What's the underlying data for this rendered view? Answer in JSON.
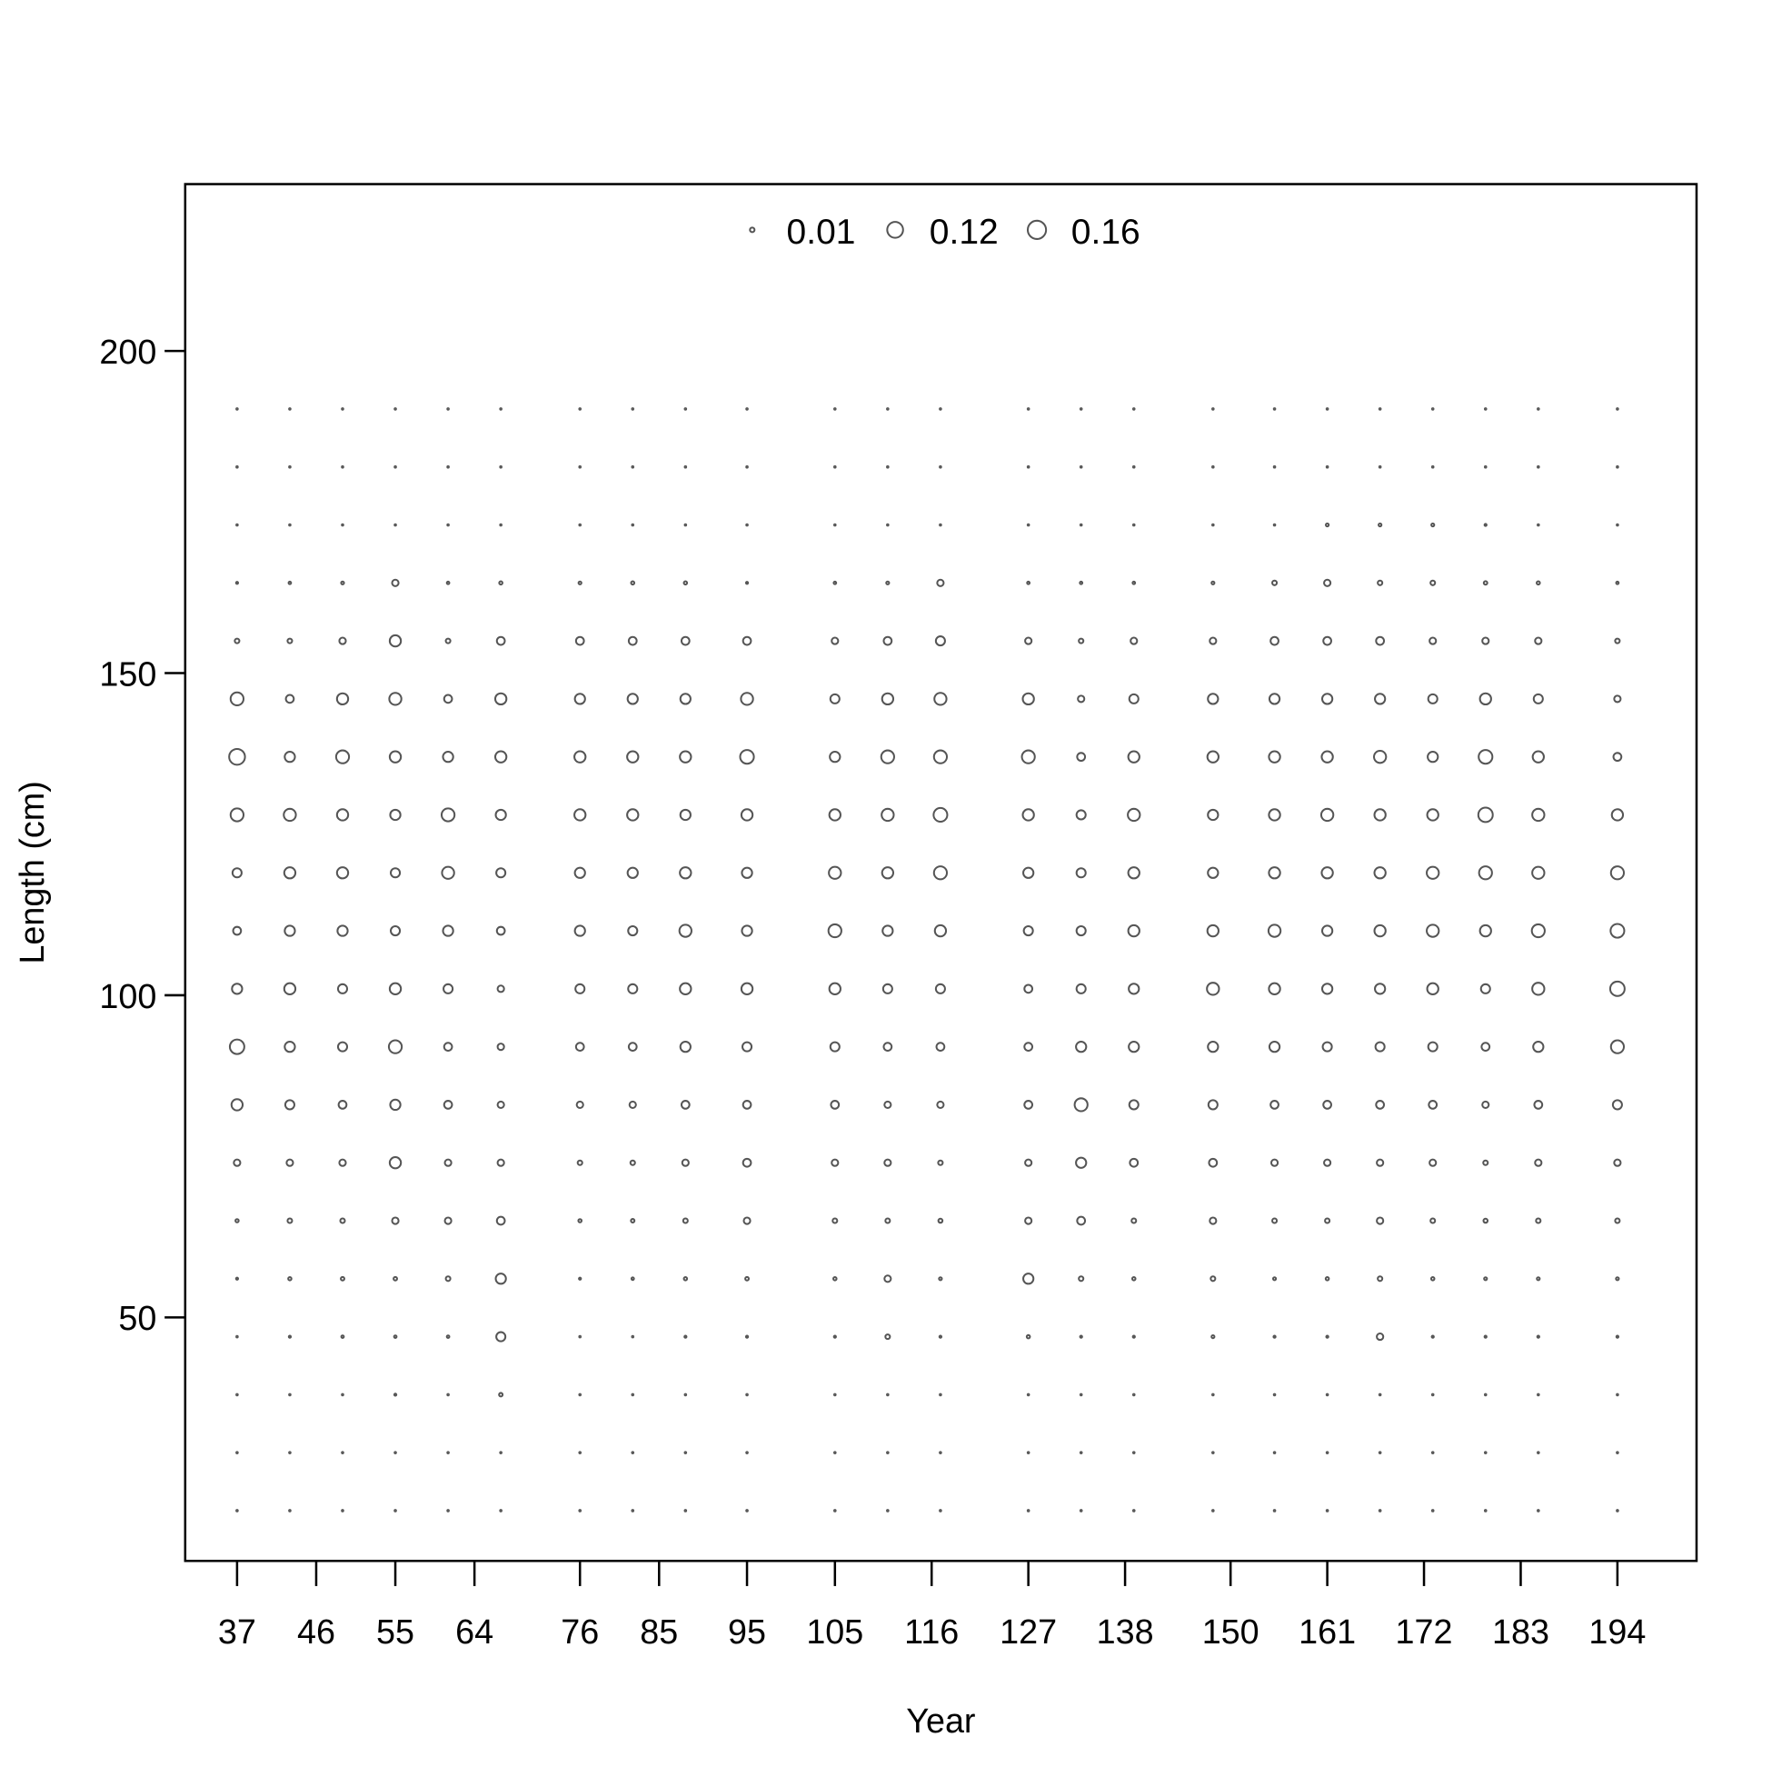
{
  "chart_data": {
    "type": "bubble",
    "xlabel": "Year",
    "ylabel": "Length (cm)",
    "xlim": [
      31.1,
      203.0
    ],
    "ylim": [
      12.2,
      225.9
    ],
    "xticks": [
      37,
      46,
      55,
      64,
      76,
      85,
      95,
      105,
      116,
      127,
      138,
      150,
      161,
      172,
      183,
      194
    ],
    "yticks": [
      50,
      100,
      150,
      200
    ],
    "legend": [
      0.01,
      0.12,
      0.16
    ],
    "color": "#555555",
    "x": [
      37,
      43,
      49,
      55,
      61,
      67,
      76,
      82,
      88,
      95,
      105,
      111,
      117,
      127,
      133,
      139,
      148,
      155,
      161,
      167,
      173,
      179,
      185,
      194
    ],
    "y": [
      20,
      29,
      38,
      47,
      56,
      65,
      74,
      83,
      92,
      101,
      110,
      119,
      128,
      137,
      146,
      155,
      164,
      173,
      182,
      191
    ],
    "values": [
      [
        0.001,
        0.001,
        0.001,
        0.001,
        0.002,
        0.005,
        0.02,
        0.06,
        0.1,
        0.05,
        0.03,
        0.04,
        0.08,
        0.12,
        0.08,
        0.01,
        0.002,
        0.001,
        0.001,
        0.001
      ],
      [
        0.001,
        0.001,
        0.001,
        0.002,
        0.005,
        0.01,
        0.02,
        0.04,
        0.05,
        0.06,
        0.05,
        0.06,
        0.07,
        0.05,
        0.03,
        0.01,
        0.003,
        0.001,
        0.001,
        0.001
      ],
      [
        0.001,
        0.001,
        0.001,
        0.003,
        0.006,
        0.01,
        0.02,
        0.03,
        0.04,
        0.04,
        0.05,
        0.06,
        0.06,
        0.08,
        0.06,
        0.02,
        0.004,
        0.001,
        0.001,
        0.001
      ],
      [
        0.001,
        0.001,
        0.002,
        0.003,
        0.006,
        0.02,
        0.06,
        0.05,
        0.08,
        0.06,
        0.04,
        0.04,
        0.05,
        0.06,
        0.07,
        0.06,
        0.02,
        0.001,
        0.001,
        0.001
      ],
      [
        0.001,
        0.001,
        0.001,
        0.003,
        0.01,
        0.02,
        0.02,
        0.03,
        0.03,
        0.04,
        0.05,
        0.07,
        0.08,
        0.05,
        0.03,
        0.01,
        0.003,
        0.001,
        0.001,
        0.001
      ],
      [
        0.001,
        0.001,
        0.006,
        0.04,
        0.05,
        0.03,
        0.02,
        0.02,
        0.02,
        0.02,
        0.03,
        0.04,
        0.05,
        0.06,
        0.06,
        0.03,
        0.005,
        0.001,
        0.001,
        0.001
      ],
      [
        0.001,
        0.001,
        0.001,
        0.001,
        0.002,
        0.005,
        0.01,
        0.02,
        0.03,
        0.04,
        0.05,
        0.05,
        0.06,
        0.06,
        0.05,
        0.03,
        0.004,
        0.001,
        0.001,
        0.001
      ],
      [
        0.001,
        0.001,
        0.001,
        0.001,
        0.003,
        0.006,
        0.01,
        0.02,
        0.03,
        0.04,
        0.04,
        0.05,
        0.06,
        0.06,
        0.05,
        0.03,
        0.005,
        0.001,
        0.001,
        0.001
      ],
      [
        0.001,
        0.001,
        0.001,
        0.002,
        0.005,
        0.01,
        0.02,
        0.03,
        0.05,
        0.06,
        0.07,
        0.06,
        0.05,
        0.06,
        0.05,
        0.03,
        0.005,
        0.001,
        0.001,
        0.001
      ],
      [
        0.001,
        0.001,
        0.001,
        0.002,
        0.006,
        0.02,
        0.03,
        0.03,
        0.04,
        0.06,
        0.05,
        0.05,
        0.06,
        0.09,
        0.07,
        0.03,
        0.002,
        0.001,
        0.001,
        0.001
      ],
      [
        0.001,
        0.001,
        0.001,
        0.002,
        0.005,
        0.01,
        0.02,
        0.03,
        0.04,
        0.06,
        0.08,
        0.07,
        0.06,
        0.05,
        0.04,
        0.02,
        0.003,
        0.001,
        0.001,
        0.001
      ],
      [
        0.001,
        0.001,
        0.001,
        0.01,
        0.02,
        0.01,
        0.02,
        0.02,
        0.03,
        0.04,
        0.05,
        0.06,
        0.07,
        0.08,
        0.06,
        0.03,
        0.004,
        0.001,
        0.001,
        0.001
      ],
      [
        0.001,
        0.001,
        0.001,
        0.002,
        0.004,
        0.008,
        0.01,
        0.02,
        0.03,
        0.04,
        0.06,
        0.08,
        0.09,
        0.08,
        0.07,
        0.04,
        0.02,
        0.001,
        0.001,
        0.001
      ],
      [
        0.001,
        0.001,
        0.001,
        0.005,
        0.05,
        0.02,
        0.02,
        0.03,
        0.03,
        0.03,
        0.04,
        0.05,
        0.06,
        0.08,
        0.06,
        0.02,
        0.003,
        0.001,
        0.001,
        0.001
      ],
      [
        0.001,
        0.001,
        0.001,
        0.002,
        0.01,
        0.03,
        0.05,
        0.08,
        0.05,
        0.04,
        0.04,
        0.04,
        0.04,
        0.03,
        0.02,
        0.01,
        0.003,
        0.001,
        0.001,
        0.001
      ],
      [
        0.001,
        0.001,
        0.001,
        0.002,
        0.005,
        0.01,
        0.03,
        0.04,
        0.05,
        0.05,
        0.06,
        0.06,
        0.07,
        0.06,
        0.04,
        0.02,
        0.003,
        0.001,
        0.001,
        0.001
      ],
      [
        0.001,
        0.001,
        0.001,
        0.004,
        0.01,
        0.02,
        0.03,
        0.04,
        0.05,
        0.07,
        0.06,
        0.05,
        0.05,
        0.06,
        0.05,
        0.02,
        0.004,
        0.001,
        0.001,
        0.001
      ],
      [
        0.001,
        0.001,
        0.001,
        0.002,
        0.004,
        0.01,
        0.02,
        0.03,
        0.05,
        0.06,
        0.07,
        0.06,
        0.06,
        0.06,
        0.05,
        0.03,
        0.01,
        0.001,
        0.001,
        0.001
      ],
      [
        0.001,
        0.001,
        0.001,
        0.002,
        0.005,
        0.01,
        0.02,
        0.03,
        0.04,
        0.05,
        0.05,
        0.06,
        0.07,
        0.06,
        0.05,
        0.03,
        0.02,
        0.004,
        0.001,
        0.001
      ],
      [
        0.001,
        0.001,
        0.001,
        0.02,
        0.01,
        0.02,
        0.02,
        0.03,
        0.04,
        0.05,
        0.06,
        0.06,
        0.06,
        0.07,
        0.05,
        0.03,
        0.01,
        0.004,
        0.001,
        0.001
      ],
      [
        0.001,
        0.001,
        0.001,
        0.002,
        0.005,
        0.01,
        0.02,
        0.03,
        0.04,
        0.06,
        0.07,
        0.07,
        0.06,
        0.05,
        0.04,
        0.02,
        0.01,
        0.004,
        0.001,
        0.001
      ],
      [
        0.001,
        0.001,
        0.001,
        0.002,
        0.004,
        0.008,
        0.01,
        0.02,
        0.03,
        0.04,
        0.06,
        0.08,
        0.1,
        0.09,
        0.06,
        0.02,
        0.006,
        0.002,
        0.001,
        0.001
      ],
      [
        0.001,
        0.001,
        0.001,
        0.002,
        0.004,
        0.01,
        0.02,
        0.03,
        0.05,
        0.07,
        0.08,
        0.07,
        0.07,
        0.06,
        0.04,
        0.02,
        0.005,
        0.001,
        0.001,
        0.001
      ],
      [
        0.001,
        0.001,
        0.001,
        0.002,
        0.004,
        0.01,
        0.02,
        0.04,
        0.08,
        0.1,
        0.09,
        0.08,
        0.06,
        0.03,
        0.02,
        0.01,
        0.003,
        0.001,
        0.001,
        0.001
      ]
    ]
  }
}
